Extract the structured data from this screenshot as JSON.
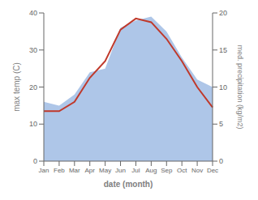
{
  "chart_data": {
    "type": "line",
    "categories": [
      "Jan",
      "Feb",
      "Mar",
      "Apr",
      "May",
      "Jun",
      "Jul",
      "Aug",
      "Sep",
      "Oct",
      "Nov",
      "Dec"
    ],
    "xlabel": "date (month)",
    "ylabel": "max temp (C)",
    "y2label": "med. precipitation (kg/m2)",
    "series": [
      {
        "type": "area",
        "axis": "y2",
        "color": "#aec6e8",
        "values": [
          8.0,
          7.5,
          9.0,
          12.0,
          12.5,
          18.0,
          19.0,
          19.5,
          17.5,
          14.0,
          11.0,
          10.0
        ]
      },
      {
        "type": "line",
        "color": "#c0392b",
        "values": [
          13.5,
          13.5,
          16.0,
          22.5,
          27.0,
          35.5,
          38.5,
          37.5,
          33.0,
          27.0,
          20.0,
          14.5
        ]
      }
    ],
    "ylim": [
      0,
      40
    ],
    "yticks": [
      0,
      10,
      20,
      30,
      40
    ],
    "y2lim": [
      0,
      20
    ],
    "y2ticks": [
      0,
      5,
      10,
      15,
      20
    ]
  }
}
